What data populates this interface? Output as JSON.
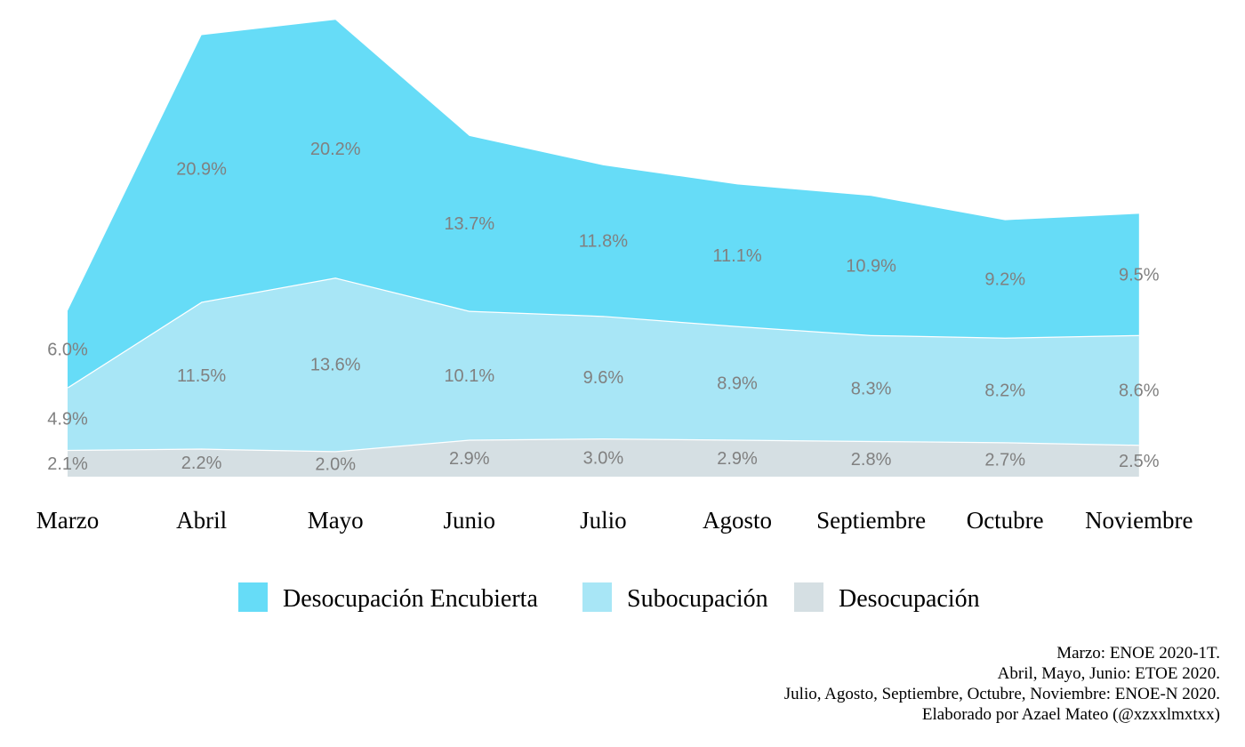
{
  "chart_data": {
    "type": "area",
    "stacked": true,
    "categories": [
      "Marzo",
      "Abril",
      "Mayo",
      "Junio",
      "Julio",
      "Agosto",
      "Septiembre",
      "Octubre",
      "Noviembre"
    ],
    "series": [
      {
        "name": "Desocupación",
        "color": "#d5dfe3",
        "values": [
          2.1,
          2.2,
          2.0,
          2.9,
          3.0,
          2.9,
          2.8,
          2.7,
          2.5
        ]
      },
      {
        "name": "Subocupación",
        "color": "#a8e6f6",
        "values": [
          4.9,
          11.5,
          13.6,
          10.1,
          9.6,
          8.9,
          8.3,
          8.2,
          8.6
        ]
      },
      {
        "name": "Desocupación Encubierta",
        "color": "#66dcf7",
        "values": [
          6.0,
          20.9,
          20.2,
          13.7,
          11.8,
          11.1,
          10.9,
          9.2,
          9.5
        ]
      }
    ],
    "legend_order": [
      "Desocupación Encubierta",
      "Subocupación",
      "Desocupación"
    ],
    "legend_position": "bottom",
    "data_labels_suffix": "%",
    "grid": false,
    "caption": [
      "Marzo: ENOE 2020-1T.",
      "Abril, Mayo, Junio: ETOE 2020.",
      "Julio, Agosto, Septiembre, Octubre, Noviembre: ENOE-N 2020.",
      "Elaborado por Azael Mateo (@xzxxlmxtxx)"
    ]
  }
}
